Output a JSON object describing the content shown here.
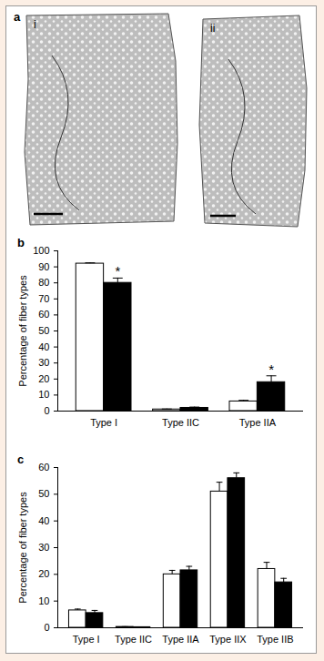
{
  "figure": {
    "panel_a": {
      "title": "a",
      "images": [
        "i",
        "ii"
      ]
    }
  },
  "chart_data": [
    {
      "type": "bar",
      "title": "b",
      "ylabel": "Percentage of fiber types",
      "categories": [
        "Type I",
        "Type IIC",
        "Type IIA"
      ],
      "series": [
        {
          "color": "#ffffff",
          "values": [
            92,
            1,
            6
          ],
          "errors": [
            0.5,
            0.3,
            0.7
          ]
        },
        {
          "color": "#000000",
          "values": [
            80,
            2,
            18
          ],
          "errors": [
            3,
            0.5,
            4
          ]
        }
      ],
      "annotations": [
        {
          "text": "*",
          "category": "Type I",
          "series": 1
        },
        {
          "text": "*",
          "category": "Type IIA",
          "series": 1
        }
      ],
      "ylim": [
        0,
        100
      ],
      "yticks": [
        0,
        10,
        20,
        30,
        40,
        50,
        60,
        70,
        80,
        90,
        100
      ],
      "grid": false
    },
    {
      "type": "bar",
      "title": "c",
      "ylabel": "Percentage of fiber types",
      "categories": [
        "Type I",
        "Type IIC",
        "Type IIA",
        "Type IIX",
        "Type IIB"
      ],
      "series": [
        {
          "color": "#ffffff",
          "values": [
            6.5,
            0.3,
            20,
            51,
            22
          ],
          "errors": [
            0.5,
            0.1,
            1.5,
            3.5,
            2.5
          ]
        },
        {
          "color": "#000000",
          "values": [
            5.5,
            0.2,
            21.5,
            56,
            17
          ],
          "errors": [
            1,
            0.1,
            1.5,
            2,
            1.5
          ]
        }
      ],
      "ylim": [
        0,
        60
      ],
      "yticks": [
        0,
        10,
        20,
        30,
        40,
        50,
        60
      ],
      "grid": false
    }
  ]
}
